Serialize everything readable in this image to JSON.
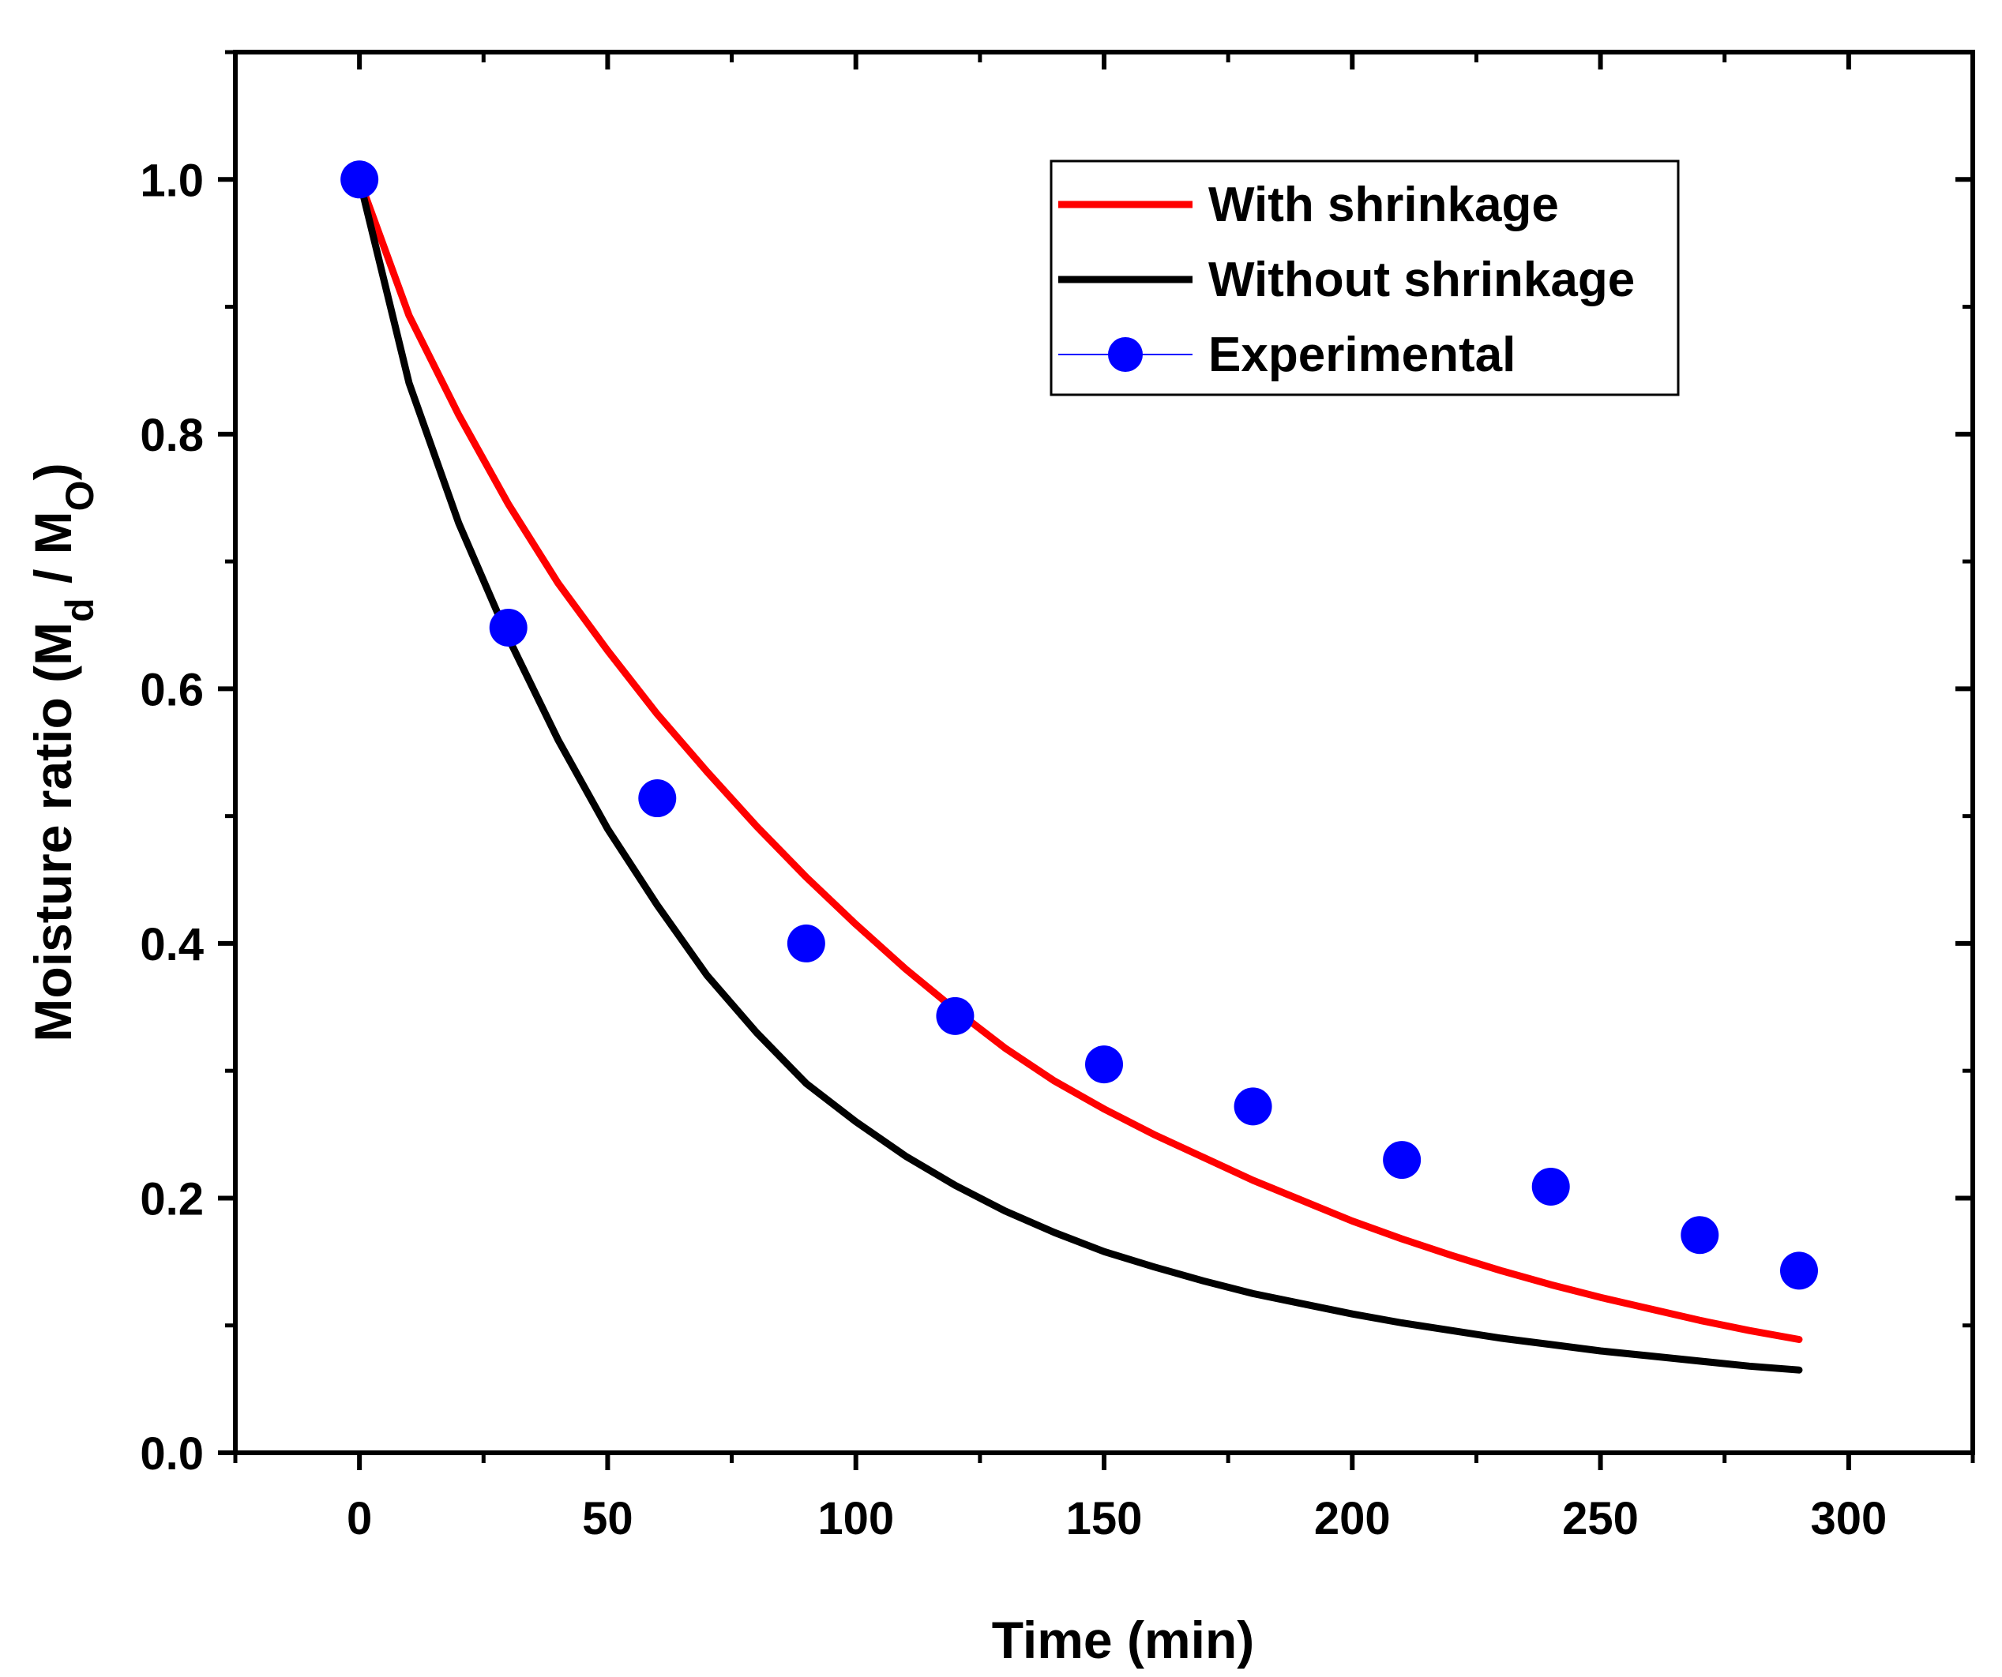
{
  "chart_data": {
    "type": "line",
    "title": "",
    "xlabel": "Time (min)",
    "ylabel": {
      "main": "Moisture ratio (M",
      "sub1": "d",
      "mid": " / M",
      "sub2": "O",
      "end": ")"
    },
    "xlim": [
      -25,
      325
    ],
    "ylim": [
      0,
      1.1
    ],
    "x_ticks": [
      0,
      50,
      100,
      150,
      200,
      250,
      300
    ],
    "x_tick_labels": [
      "0",
      "50",
      "100",
      "150",
      "200",
      "250",
      "300"
    ],
    "y_ticks": [
      0.0,
      0.2,
      0.4,
      0.6,
      0.8,
      1.0
    ],
    "y_tick_labels": [
      "0.0",
      "0.2",
      "0.4",
      "0.6",
      "0.8",
      "1.0"
    ],
    "grid": false,
    "legend_position": "top-right",
    "series": [
      {
        "name": "With shrinkage",
        "style": "line",
        "color": "#ff0000",
        "x": [
          0,
          10,
          20,
          30,
          40,
          50,
          60,
          70,
          80,
          90,
          100,
          110,
          120,
          130,
          140,
          150,
          160,
          170,
          180,
          190,
          200,
          210,
          220,
          230,
          240,
          250,
          260,
          270,
          280,
          290
        ],
        "values": [
          1.0,
          0.893,
          0.815,
          0.745,
          0.683,
          0.63,
          0.58,
          0.535,
          0.492,
          0.452,
          0.415,
          0.38,
          0.348,
          0.318,
          0.292,
          0.27,
          0.25,
          0.232,
          0.214,
          0.198,
          0.182,
          0.168,
          0.155,
          0.143,
          0.132,
          0.122,
          0.113,
          0.104,
          0.096,
          0.089
        ]
      },
      {
        "name": "Without shrinkage",
        "style": "line",
        "color": "#000000",
        "x": [
          0,
          10,
          20,
          30,
          40,
          50,
          60,
          70,
          80,
          90,
          100,
          110,
          120,
          130,
          140,
          150,
          160,
          170,
          180,
          190,
          200,
          210,
          220,
          230,
          240,
          250,
          260,
          270,
          280,
          290
        ],
        "values": [
          1.0,
          0.84,
          0.73,
          0.64,
          0.56,
          0.49,
          0.43,
          0.375,
          0.33,
          0.29,
          0.26,
          0.233,
          0.21,
          0.19,
          0.173,
          0.158,
          0.146,
          0.135,
          0.125,
          0.117,
          0.109,
          0.102,
          0.096,
          0.09,
          0.085,
          0.08,
          0.076,
          0.072,
          0.068,
          0.065
        ]
      },
      {
        "name": "Experimental",
        "style": "scatter",
        "color": "#0000ff",
        "x": [
          0,
          30,
          60,
          90,
          120,
          150,
          180,
          210,
          240,
          270,
          290
        ],
        "values": [
          1.0,
          0.648,
          0.514,
          0.4,
          0.343,
          0.305,
          0.272,
          0.23,
          0.209,
          0.171,
          0.143
        ]
      }
    ]
  }
}
